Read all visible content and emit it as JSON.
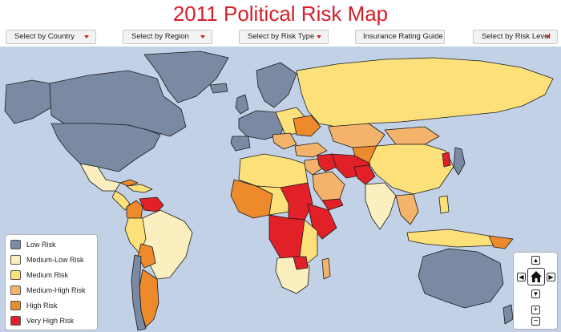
{
  "title": "2011 Political Risk Map",
  "toolbar": {
    "country": "Select by Country",
    "region": "Select by Region",
    "risk_type": "Select by Risk Type",
    "insurance": "Insurance Rating Guide",
    "risk_level": "Select by Risk Level"
  },
  "legend": [
    {
      "label": "Low Risk",
      "color": "#7b8aa3"
    },
    {
      "label": "Medium-Low Risk",
      "color": "#fbefc0"
    },
    {
      "label": "Medium Risk",
      "color": "#fce07a"
    },
    {
      "label": "Medium-High Risk",
      "color": "#f4b36a"
    },
    {
      "label": "High Risk",
      "color": "#ec8a2c"
    },
    {
      "label": "Very High Risk",
      "color": "#e12027"
    }
  ],
  "colors": {
    "ocean": "#c3d1e6",
    "title": "#d3202a",
    "border": "#222222"
  },
  "nav_icons": [
    "pan-up-icon",
    "pan-left-icon",
    "home-icon",
    "pan-right-icon",
    "pan-down-icon",
    "zoom-in-icon",
    "zoom-out-icon"
  ]
}
